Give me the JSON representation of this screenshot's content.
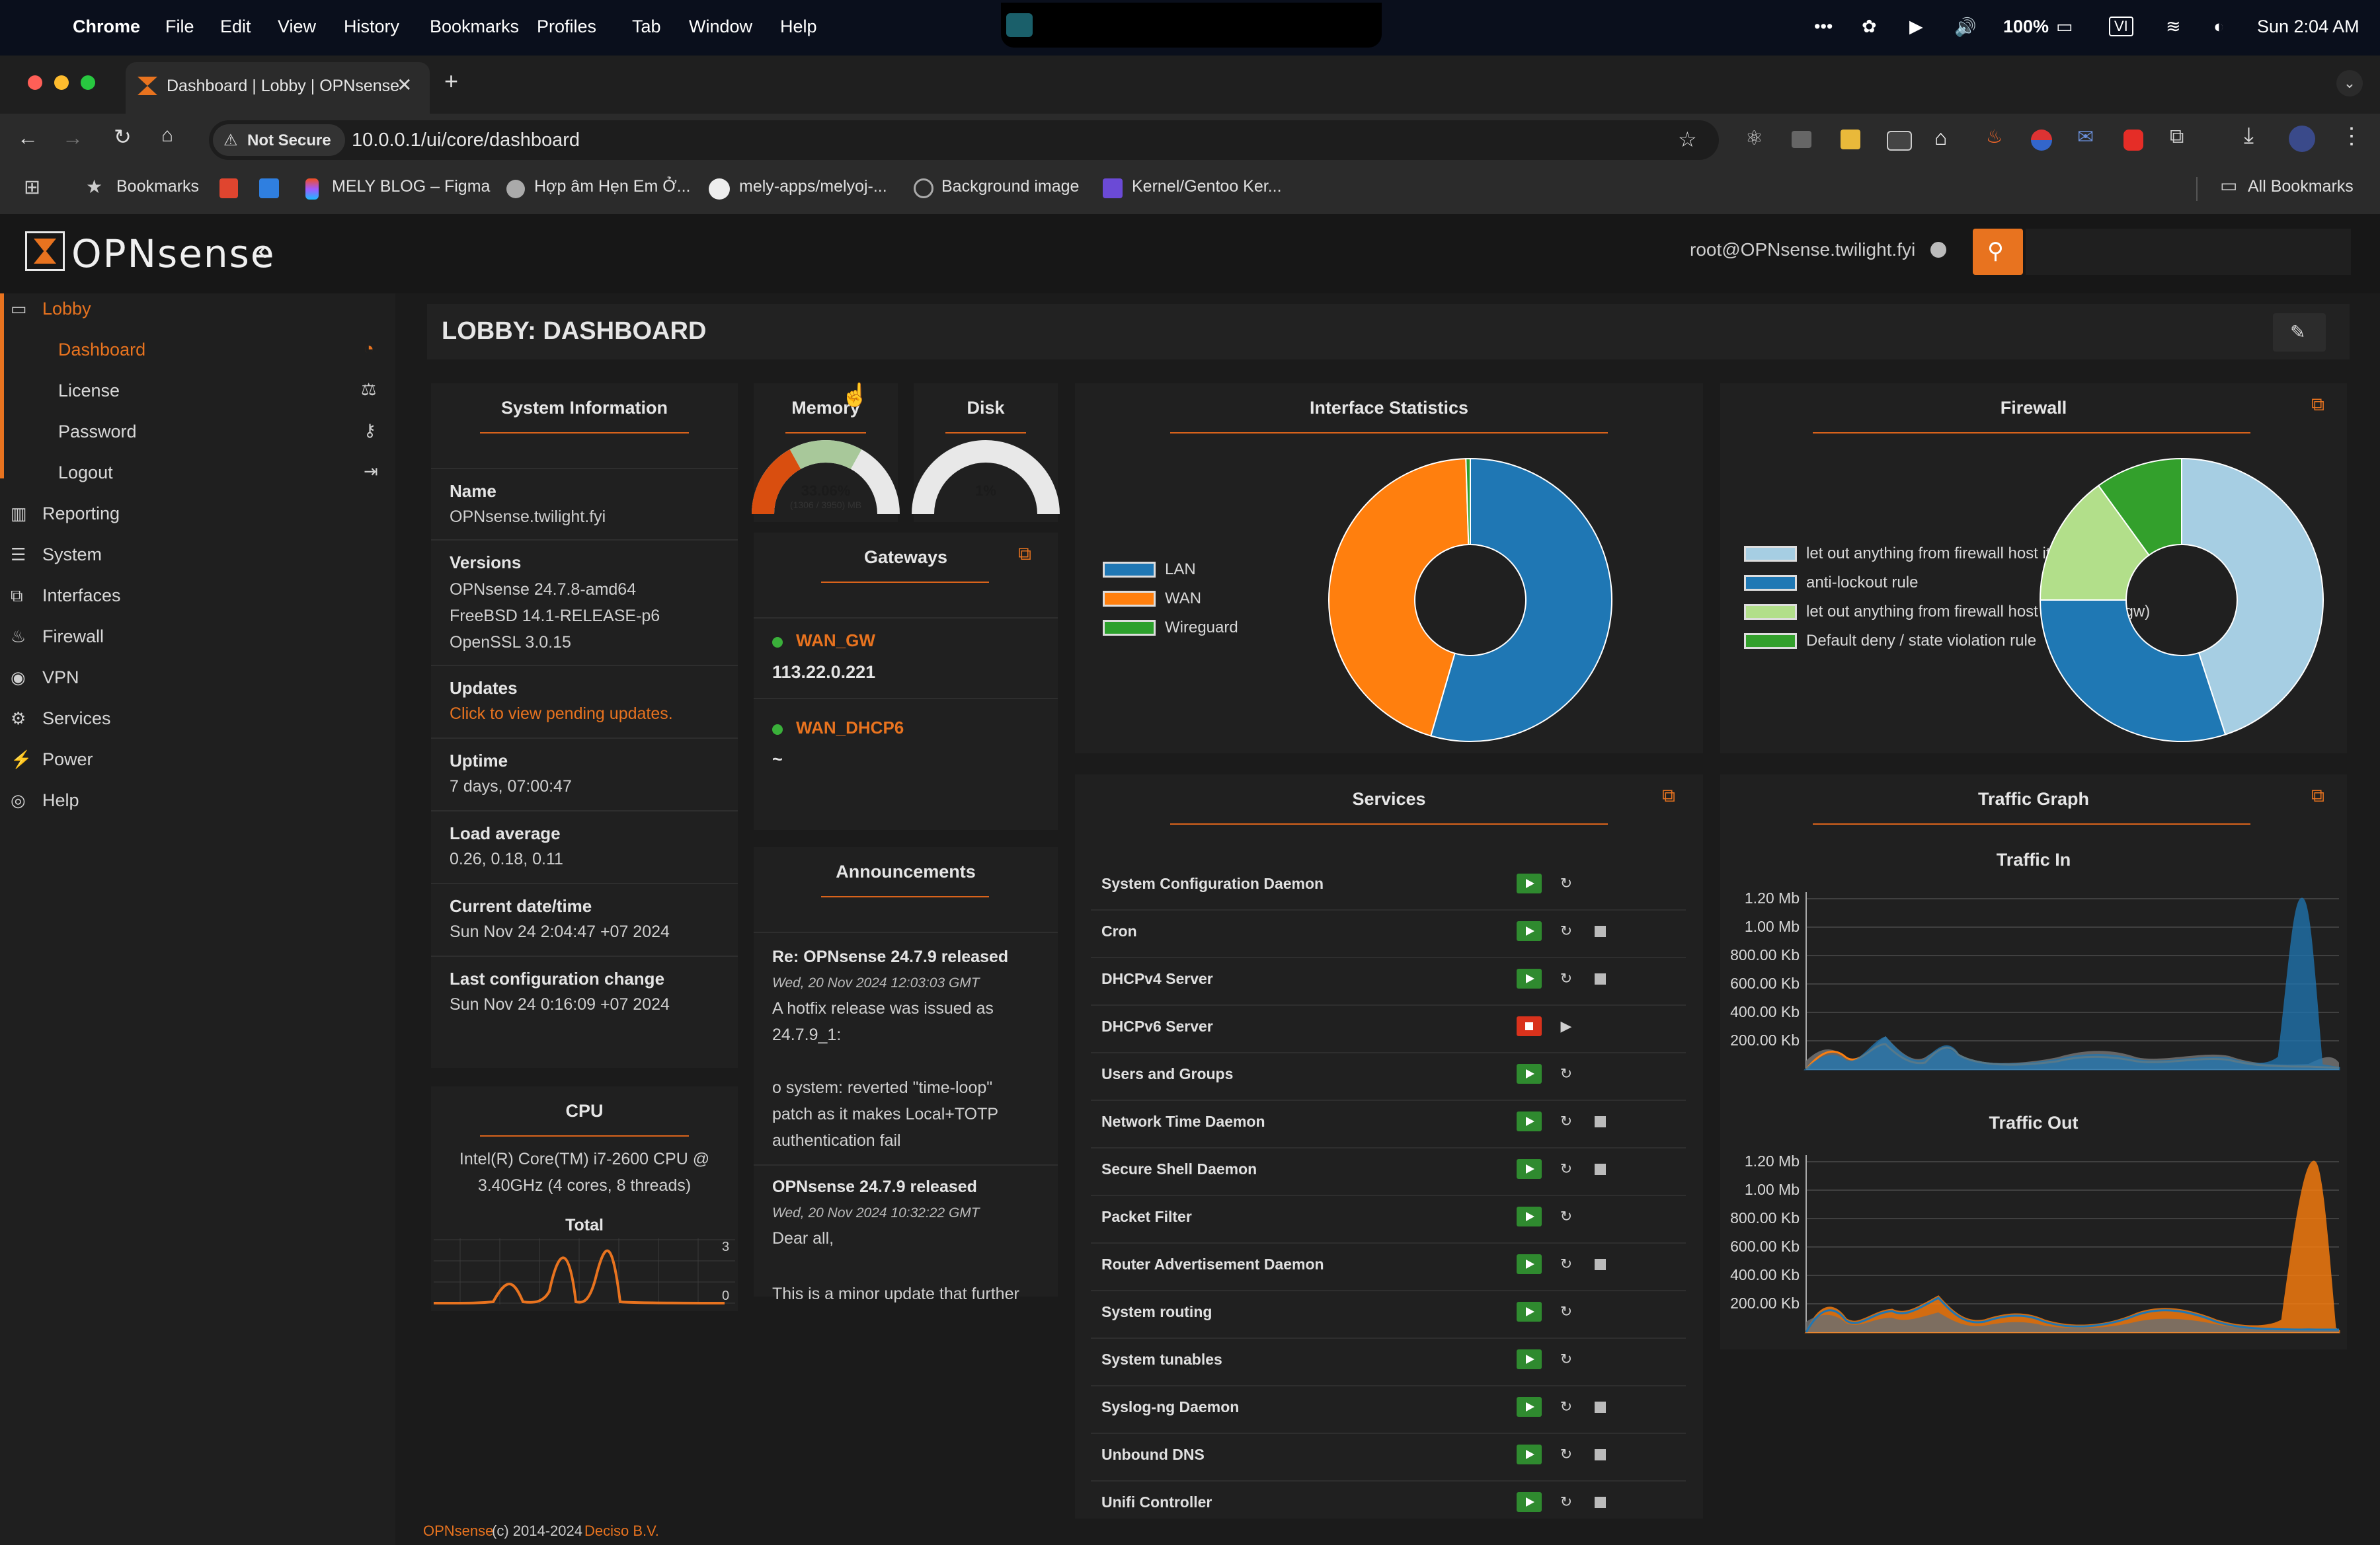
{
  "mac_menu": {
    "app": "Chrome",
    "items": [
      "File",
      "Edit",
      "View",
      "History",
      "Bookmarks",
      "Profiles",
      "Tab",
      "Window",
      "Help"
    ],
    "battery": "100%",
    "input_source": "VI",
    "clock": "Sun 2:04 AM"
  },
  "browser": {
    "tab_title": "Dashboard | Lobby | OPNsense",
    "security_label": "Not Secure",
    "url": "10.0.0.1/ui/core/dashboard",
    "bookmarks": [
      "Bookmarks",
      "MELY BLOG – Figma",
      "Hợp âm Hẹn Em Ở...",
      "mely-apps/melyoj-...",
      "Background image",
      "Kernel/Gentoo Ker..."
    ],
    "all_bookmarks": "All Bookmarks"
  },
  "app": {
    "logo": "OPNsense",
    "user": "root@OPNsense.twilight.fyi",
    "page_title": "LOBBY: DASHBOARD",
    "footer_brand": "OPNsense",
    "footer_copy": "(c) 2014-2024",
    "footer_vendor": "Deciso B.V."
  },
  "sidebar": {
    "lobby": "Lobby",
    "lobby_items": [
      "Dashboard",
      "License",
      "Password",
      "Logout"
    ],
    "sections": [
      "Reporting",
      "System",
      "Interfaces",
      "Firewall",
      "VPN",
      "Services",
      "Power",
      "Help"
    ]
  },
  "system_info": {
    "title": "System Information",
    "name_label": "Name",
    "name_value": "OPNsense.twilight.fyi",
    "versions_label": "Versions",
    "versions": [
      "OPNsense 24.7.8-amd64",
      "FreeBSD 14.1-RELEASE-p6",
      "OpenSSL 3.0.15"
    ],
    "updates_label": "Updates",
    "updates_link": "Click to view pending updates.",
    "uptime_label": "Uptime",
    "uptime_value": "7 days, 07:00:47",
    "load_label": "Load average",
    "load_value": "0.26, 0.18, 0.11",
    "date_label": "Current date/time",
    "date_value": "Sun Nov 24 2:04:47 +07 2024",
    "lastcfg_label": "Last configuration change",
    "lastcfg_value": "Sun Nov 24 0:16:09 +07 2024"
  },
  "cpu": {
    "title": "CPU",
    "model_line1": "Intel(R) Core(TM) i7-2600 CPU @",
    "model_line2": "3.40GHz (4 cores, 8 threads)",
    "graph_title": "Total",
    "axis_max": "3",
    "axis_min": "0"
  },
  "memory": {
    "title": "Memory",
    "percent": "33.06%",
    "detail": "(1306 / 3950) MB",
    "fraction": 0.3306
  },
  "disk": {
    "title": "Disk",
    "percent": "1%",
    "fraction": 0.01
  },
  "gateways": {
    "title": "Gateways",
    "items": [
      {
        "name": "WAN_GW",
        "address": "113.22.0.221"
      },
      {
        "name": "WAN_DHCP6",
        "address": "~"
      }
    ]
  },
  "announcements": {
    "title": "Announcements",
    "items": [
      {
        "title": "Re: OPNsense 24.7.9 released",
        "date": "Wed, 20 Nov 2024 12:03:03 GMT",
        "body": [
          "A hotfix release was issued as",
          "24.7.9_1:",
          "",
          "o system: reverted \"time-loop\"",
          "patch as it makes Local+TOTP",
          "authentication fail"
        ]
      },
      {
        "title": "OPNsense 24.7.9 released",
        "date": "Wed, 20 Nov 2024 10:32:22 GMT",
        "body": [
          "Dear all,",
          "",
          "This is a minor update that further"
        ]
      }
    ]
  },
  "interface_stats": {
    "title": "Interface Statistics",
    "legend": [
      "LAN",
      "WAN",
      "Wireguard"
    ],
    "colors": [
      "#1f77b4",
      "#ff7f0e",
      "#2ca02c"
    ]
  },
  "firewall": {
    "title": "Firewall",
    "legend": [
      "let out anything from firewall host itself",
      "anti-lockout rule",
      "let out anything from firewall host itself (force gw)",
      "Default deny / state violation rule"
    ],
    "colors": [
      "#a6cee3",
      "#1f78b4",
      "#b2df8a",
      "#33a02c"
    ]
  },
  "services": {
    "title": "Services",
    "items": [
      {
        "name": "System Configuration Daemon",
        "running": true,
        "stop": false
      },
      {
        "name": "Cron",
        "running": true,
        "stop": true
      },
      {
        "name": "DHCPv4 Server",
        "running": true,
        "stop": true
      },
      {
        "name": "DHCPv6 Server",
        "running": false,
        "stop": false
      },
      {
        "name": "Users and Groups",
        "running": true,
        "stop": false
      },
      {
        "name": "Network Time Daemon",
        "running": true,
        "stop": true
      },
      {
        "name": "Secure Shell Daemon",
        "running": true,
        "stop": true
      },
      {
        "name": "Packet Filter",
        "running": true,
        "stop": false
      },
      {
        "name": "Router Advertisement Daemon",
        "running": true,
        "stop": true
      },
      {
        "name": "System routing",
        "running": true,
        "stop": false
      },
      {
        "name": "System tunables",
        "running": true,
        "stop": false
      },
      {
        "name": "Syslog-ng Daemon",
        "running": true,
        "stop": true
      },
      {
        "name": "Unbound DNS",
        "running": true,
        "stop": true
      },
      {
        "name": "Unifi Controller",
        "running": true,
        "stop": true
      }
    ]
  },
  "traffic": {
    "title": "Traffic Graph",
    "in_title": "Traffic In",
    "out_title": "Traffic Out",
    "ticks": [
      "1.20 Mb",
      "1.00 Mb",
      "800.00 Kb",
      "600.00 Kb",
      "400.00 Kb",
      "200.00 Kb"
    ]
  },
  "chart_data": [
    {
      "type": "pie",
      "labels": [
        "LAN",
        "WAN",
        "Wireguard"
      ],
      "values": [
        54.5,
        45.0,
        0.5
      ]
    },
    {
      "type": "pie",
      "labels": [
        "let out anything from firewall host itself",
        "anti-lockout rule",
        "let out anything from firewall host itself (force gw)",
        "Default deny / state violation rule"
      ],
      "values": [
        45,
        30,
        15,
        10
      ]
    }
  ]
}
